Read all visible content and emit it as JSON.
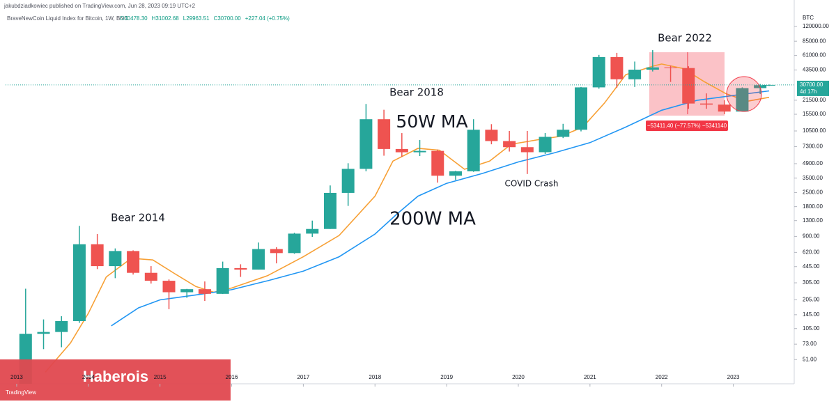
{
  "header": {
    "publisher": "jakubdziadkowiec published on TradingView.com, Jun 28, 2023 09:19 UTC+2",
    "symbol": "BraveNewCoin Liquid Index for Bitcoin, 1W, BNC",
    "ohlc": [
      "O30478.30",
      "H31002.68",
      "L29963.51",
      "C30700.00"
    ],
    "change": "+227.04 (+0.75%)"
  },
  "chart_data": {
    "type": "candlestick",
    "currency": "BTC",
    "log_scale": true,
    "xlim": [
      2012.845,
      2023.85
    ],
    "xticks": [
      2013,
      2014,
      2015,
      2016,
      2017,
      2018,
      2019,
      2020,
      2021,
      2022,
      2023
    ],
    "ylim": [
      29,
      130000
    ],
    "yticks": [
      {
        "value": 120000,
        "label": "120000.00"
      },
      {
        "value": 85000,
        "label": "85000.00"
      },
      {
        "value": 61000,
        "label": "61000.00"
      },
      {
        "value": 43500,
        "label": "43500.00"
      },
      {
        "value": 21500,
        "label": "21500.00"
      },
      {
        "value": 15500,
        "label": "15500.00"
      },
      {
        "value": 10500,
        "label": "10500.00"
      },
      {
        "value": 7300,
        "label": "7300.00"
      },
      {
        "value": 4900,
        "label": "4900.00"
      },
      {
        "value": 3500,
        "label": "3500.00"
      },
      {
        "value": 2500,
        "label": "2500.00"
      },
      {
        "value": 1800,
        "label": "1800.00"
      },
      {
        "value": 1300,
        "label": "1300.00"
      },
      {
        "value": 900,
        "label": "900.00"
      },
      {
        "value": 620,
        "label": "620.00"
      },
      {
        "value": 445,
        "label": "445.00"
      },
      {
        "value": 305,
        "label": "305.00"
      },
      {
        "value": 205,
        "label": "205.00"
      },
      {
        "value": 145,
        "label": "145.00"
      },
      {
        "value": 105,
        "label": "105.00"
      },
      {
        "value": 73,
        "label": "73.00"
      },
      {
        "value": 51,
        "label": "51.00"
      }
    ],
    "last_price": {
      "value": 30700,
      "label": "30700.00",
      "countdown": "4d 17h"
    },
    "up_color": "#26a69a",
    "down_color": "#ef5350",
    "x": [
      2013.125,
      2013.375,
      2013.625,
      2013.875,
      2014.125,
      2014.375,
      2014.625,
      2014.875,
      2015.125,
      2015.375,
      2015.625,
      2015.875,
      2016.125,
      2016.375,
      2016.625,
      2016.875,
      2017.125,
      2017.375,
      2017.625,
      2017.875,
      2018.125,
      2018.375,
      2018.625,
      2018.875,
      2019.125,
      2019.375,
      2019.625,
      2019.875,
      2020.125,
      2020.375,
      2020.625,
      2020.875,
      2021.125,
      2021.375,
      2021.625,
      2021.875,
      2022.125,
      2022.375,
      2022.625,
      2022.875,
      2023.125,
      2023.375,
      2023.5
    ],
    "open": [
      13,
      93,
      97,
      125,
      750,
      450,
      640,
      385,
      320,
      245,
      263,
      236,
      430,
      415,
      670,
      610,
      960,
      1070,
      2480,
      4340,
      13800,
      6900,
      6390,
      6600,
      3700,
      4100,
      10800,
      8300,
      7200,
      6400,
      9150,
      10800,
      29000,
      58800,
      35000,
      43800,
      46200,
      45500,
      19900,
      19400,
      16500,
      28500,
      30478
    ],
    "high": [
      266,
      130,
      140,
      1150,
      950,
      680,
      650,
      450,
      330,
      265,
      315,
      500,
      470,
      780,
      700,
      980,
      1300,
      2950,
      4950,
      19700,
      17200,
      9990,
      8500,
      6800,
      4150,
      13800,
      12300,
      10500,
      10500,
      10000,
      12400,
      29300,
      61800,
      64800,
      52900,
      69000,
      48200,
      47400,
      25200,
      21500,
      29000,
      31400,
      31003
    ],
    "low": [
      13,
      65,
      68,
      120,
      420,
      340,
      370,
      300,
      165,
      215,
      200,
      235,
      350,
      415,
      480,
      600,
      890,
      1070,
      1830,
      4100,
      5900,
      5750,
      5850,
      3150,
      3350,
      4050,
      7700,
      6500,
      3850,
      6150,
      8900,
      10400,
      28100,
      28800,
      29300,
      42000,
      32900,
      17600,
      17600,
      15500,
      16500,
      24800,
      29964
    ],
    "close": [
      93,
      97,
      125,
      750,
      450,
      640,
      385,
      320,
      245,
      263,
      236,
      430,
      415,
      670,
      610,
      960,
      1070,
      2480,
      4340,
      13800,
      6900,
      6390,
      6600,
      3700,
      4100,
      10800,
      8300,
      7200,
      6400,
      9150,
      10800,
      29000,
      58800,
      35000,
      43800,
      46200,
      45500,
      19900,
      19400,
      16500,
      28500,
      30500,
      30700
    ],
    "lines": [
      {
        "color": "#f7a035",
        "x": [
          2013.4,
          2013.75,
          2014.0,
          2014.25,
          2014.6,
          2014.9,
          2015.2,
          2015.5,
          2015.75,
          2016.0,
          2016.5,
          2017.0,
          2017.5,
          2018.0,
          2018.25,
          2018.6,
          2018.9,
          2019.25,
          2019.6,
          2019.9,
          2020.25,
          2020.6,
          2020.9,
          2021.2,
          2021.5,
          2021.9,
          2022.0,
          2022.3,
          2022.6,
          2022.9,
          2023.2,
          2023.5
        ],
        "values": [
          38,
          75,
          150,
          350,
          540,
          520,
          380,
          280,
          245,
          270,
          360,
          560,
          920,
          2300,
          5200,
          7000,
          6700,
          4300,
          5200,
          7700,
          8500,
          9300,
          11500,
          20000,
          39000,
          48000,
          50000,
          45000,
          33000,
          25000,
          21000,
          23000
        ]
      },
      {
        "color": "#2196f3",
        "x": [
          2014.32,
          2014.7,
          2015.0,
          2015.5,
          2016.0,
          2016.5,
          2017.0,
          2017.5,
          2018.0,
          2018.3,
          2018.6,
          2019.0,
          2019.5,
          2020.0,
          2020.5,
          2021.0,
          2021.5,
          2022.0,
          2022.5,
          2023.0,
          2023.5
        ],
        "values": [
          112,
          170,
          205,
          230,
          260,
          320,
          400,
          560,
          950,
          1500,
          2300,
          3100,
          3900,
          5100,
          6300,
          8000,
          11500,
          17000,
          21500,
          24000,
          26700
        ]
      }
    ],
    "annotations": [
      "Bear 2014",
      "Bear 2018",
      "Bear 2022",
      "50W MA",
      "200W MA",
      "COVID Crash"
    ],
    "measure_label": "−53411.40 (−77.57%) −5341140"
  },
  "watermark": "Haberois",
  "logo": "TradingView"
}
